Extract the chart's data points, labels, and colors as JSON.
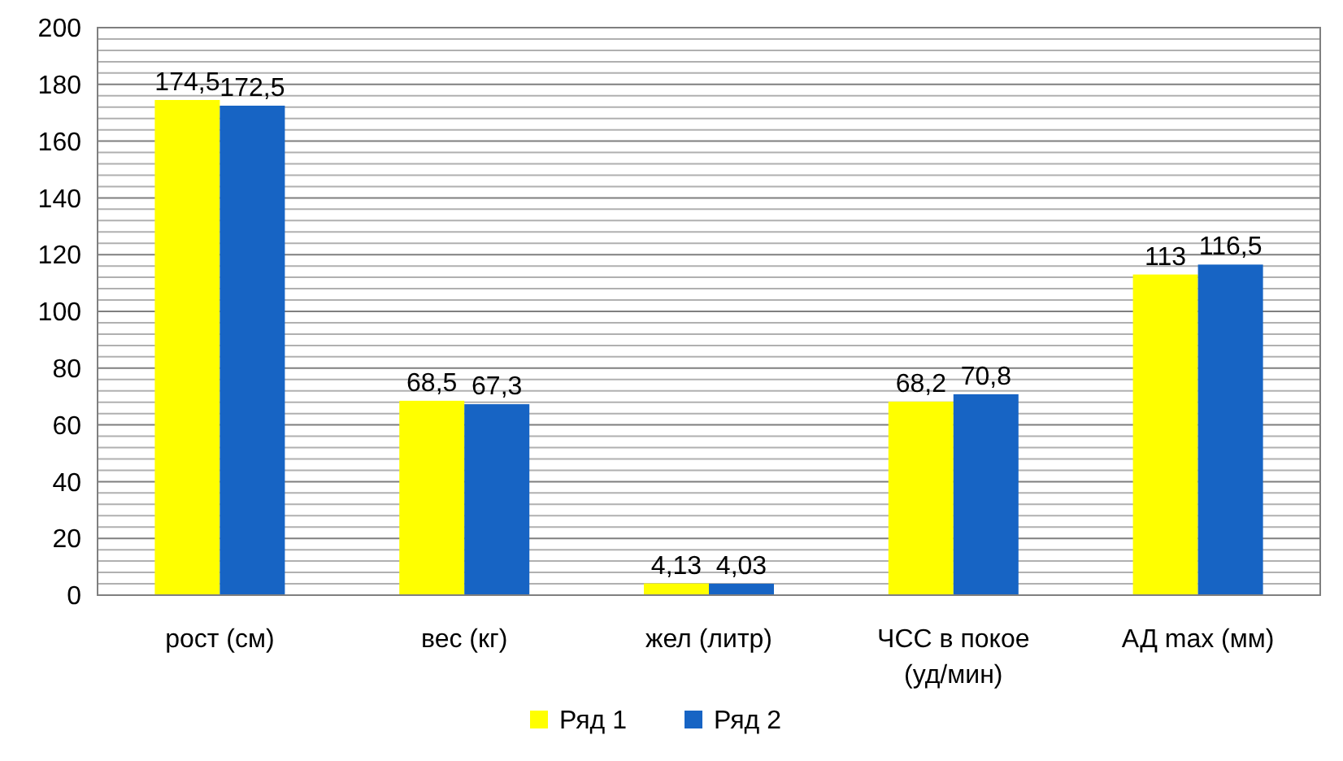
{
  "chart_data": {
    "type": "bar",
    "categories": [
      "рост (см)",
      "вес  (кг)",
      "жел  (литр)",
      "ЧСС в покое (уд/мин)",
      "АД max (мм)"
    ],
    "series": [
      {
        "name": "Ряд 1",
        "color": "#ffff00",
        "values": [
          174.5,
          68.5,
          4.13,
          68.2,
          113
        ],
        "value_labels": [
          "174,5",
          "68,5",
          "4,13",
          "68,2",
          "113"
        ]
      },
      {
        "name": "Ряд 2",
        "color": "#1764c4",
        "values": [
          172.5,
          67.3,
          4.03,
          70.8,
          116.5
        ],
        "value_labels": [
          "172,5",
          "67,3",
          "4,03",
          "70,8",
          "116,5"
        ]
      }
    ],
    "ylim": [
      0,
      200
    ],
    "yticks": [
      0,
      {
        "value": 4,
        "label": null
      },
      {
        "value": 8,
        "label": null
      },
      {
        "value": 12,
        "label": null
      },
      {
        "value": 16,
        "label": null
      },
      20,
      {
        "value": 24,
        "label": null
      },
      {
        "value": 28,
        "label": null
      },
      {
        "value": 32,
        "label": null
      },
      {
        "value": 36,
        "label": null
      },
      40,
      {
        "value": 44,
        "label": null
      },
      {
        "value": 48,
        "label": null
      },
      {
        "value": 52,
        "label": null
      },
      {
        "value": 56,
        "label": null
      },
      60,
      {
        "value": 64,
        "label": null
      },
      {
        "value": 68,
        "label": null
      },
      {
        "value": 72,
        "label": null
      },
      {
        "value": 76,
        "label": null
      },
      80,
      {
        "value": 84,
        "label": null
      },
      {
        "value": 88,
        "label": null
      },
      {
        "value": 92,
        "label": null
      },
      {
        "value": 96,
        "label": null
      },
      100,
      {
        "value": 104,
        "label": null
      },
      {
        "value": 108,
        "label": null
      },
      {
        "value": 112,
        "label": null
      },
      {
        "value": 116,
        "label": null
      },
      120,
      {
        "value": 124,
        "label": null
      },
      {
        "value": 128,
        "label": null
      },
      {
        "value": 132,
        "label": null
      },
      {
        "value": 136,
        "label": null
      },
      140,
      {
        "value": 144,
        "label": null
      },
      {
        "value": 148,
        "label": null
      },
      {
        "value": 152,
        "label": null
      },
      {
        "value": 156,
        "label": null
      },
      160,
      {
        "value": 164,
        "label": null
      },
      {
        "value": 168,
        "label": null
      },
      {
        "value": 172,
        "label": null
      },
      {
        "value": 176,
        "label": null
      },
      180,
      {
        "value": 184,
        "label": null
      },
      {
        "value": 188,
        "label": null
      },
      {
        "value": 192,
        "label": null
      },
      {
        "value": 196,
        "label": null
      },
      200
    ],
    "grid": true,
    "legend": "bottom"
  }
}
